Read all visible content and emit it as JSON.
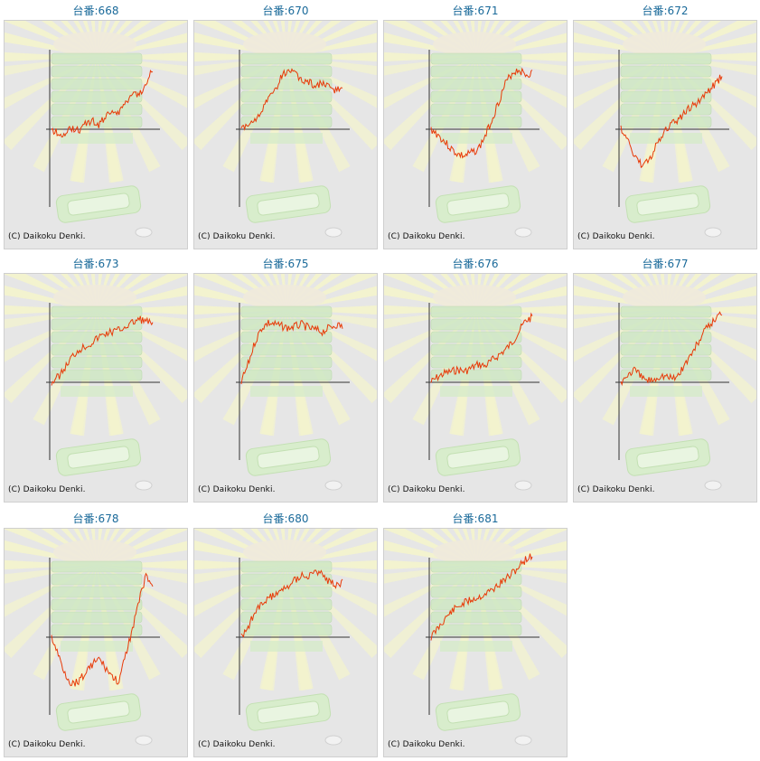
{
  "credit_text": "(C) Daikoku Denki.",
  "line_color": "#e83a08",
  "title_color": "#1a6a9a",
  "machines": [
    {
      "label": "台番:668",
      "trend": [
        0,
        -4,
        -8,
        2,
        -1,
        6,
        10,
        4,
        14,
        22,
        18,
        30,
        42,
        38,
        52,
        68
      ]
    },
    {
      "label": "台番:670",
      "trend": [
        0,
        4,
        12,
        20,
        32,
        44,
        58,
        66,
        60,
        54,
        52,
        48,
        50,
        46,
        44,
        46
      ]
    },
    {
      "label": "台番:671",
      "trend": [
        0,
        -6,
        -14,
        -22,
        -28,
        -30,
        -26,
        -22,
        -8,
        10,
        30,
        50,
        62,
        66,
        60,
        62
      ]
    },
    {
      "label": "台番:672",
      "trend": [
        0,
        -12,
        -28,
        -40,
        -36,
        -22,
        -10,
        2,
        8,
        14,
        22,
        28,
        34,
        42,
        50,
        60
      ]
    },
    {
      "label": "台番:673",
      "trend": [
        0,
        6,
        16,
        28,
        36,
        40,
        44,
        50,
        54,
        56,
        58,
        62,
        66,
        70,
        68,
        64
      ]
    },
    {
      "label": "台番:675",
      "trend": [
        0,
        20,
        44,
        60,
        66,
        64,
        62,
        60,
        62,
        64,
        60,
        58,
        56,
        60,
        64,
        62
      ]
    },
    {
      "label": "台番:676",
      "trend": [
        0,
        6,
        10,
        12,
        14,
        12,
        16,
        20,
        18,
        24,
        30,
        36,
        44,
        56,
        68,
        72
      ]
    },
    {
      "label": "台番:677",
      "trend": [
        0,
        8,
        14,
        6,
        2,
        4,
        8,
        6,
        4,
        14,
        26,
        38,
        52,
        62,
        70,
        78
      ]
    },
    {
      "label": "台番:678",
      "trend": [
        0,
        -20,
        -40,
        -52,
        -48,
        -40,
        -30,
        -24,
        -34,
        -44,
        -50,
        -20,
        10,
        40,
        68,
        56
      ]
    },
    {
      "label": "台番:680",
      "trend": [
        0,
        12,
        26,
        36,
        42,
        48,
        52,
        58,
        64,
        70,
        66,
        74,
        68,
        62,
        56,
        60
      ]
    },
    {
      "label": "台番:681",
      "trend": [
        0,
        10,
        20,
        28,
        34,
        38,
        42,
        44,
        48,
        52,
        58,
        64,
        70,
        78,
        86,
        90
      ]
    }
  ]
}
